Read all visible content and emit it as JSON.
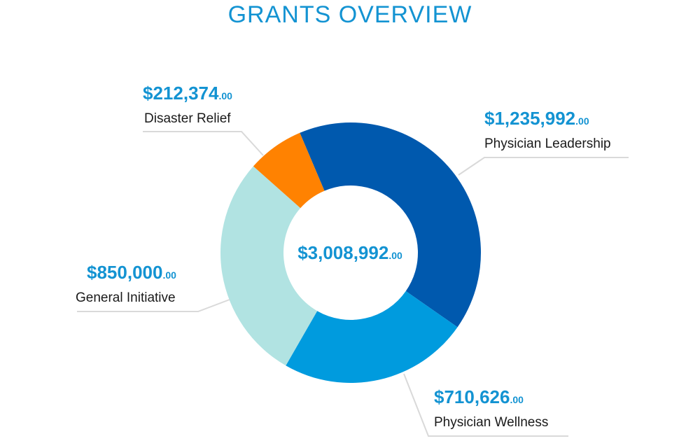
{
  "title": "GRANTS OVERVIEW",
  "total": {
    "amount": "$3,008,992",
    "cents": ".00"
  },
  "chart_data": {
    "type": "pie",
    "title": "GRANTS OVERVIEW",
    "donut": true,
    "total": 3008992,
    "slices": [
      {
        "label": "Physician Leadership",
        "amount": "$1,235,992",
        "cents": ".00",
        "value": 1235992,
        "color": "#0059ae"
      },
      {
        "label": "Physician Wellness",
        "amount": "$710,626",
        "cents": ".00",
        "value": 710626,
        "color": "#009bde"
      },
      {
        "label": "General Initiative",
        "amount": "$850,000",
        "cents": ".00",
        "value": 850000,
        "color": "#b1e3e2"
      },
      {
        "label": "Disaster Relief",
        "amount": "$212,374",
        "cents": ".00",
        "value": 212374,
        "color": "#ff8201"
      }
    ]
  }
}
